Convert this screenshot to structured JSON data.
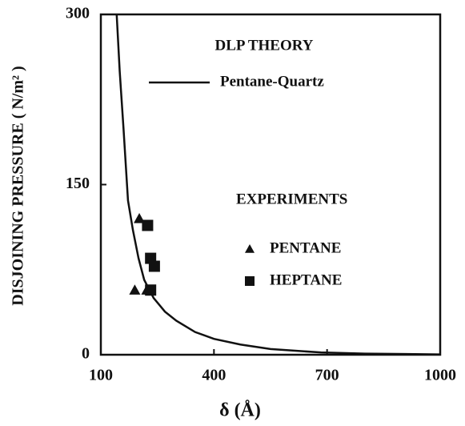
{
  "chart_data": {
    "type": "line",
    "x_label": "δ (Å)",
    "y_label": "DISJOINING PRESSURE ( N/m² )",
    "annotations": [
      "DLP THEORY",
      "EXPERIMENTS"
    ],
    "xlim": [
      100,
      1000
    ],
    "xticks": [
      100,
      400,
      700,
      1000
    ],
    "ylim": [
      0,
      300
    ],
    "yticks": [
      0,
      150,
      300
    ],
    "series": [
      {
        "name": "Pentane-Quartz",
        "marker": "none",
        "color": "#111111",
        "x": [
          142,
          150,
          160,
          172,
          185,
          200,
          215,
          240,
          270,
          300,
          350,
          400,
          470,
          550,
          684,
          800,
          1000
        ],
        "values": [
          300,
          250,
          200,
          136,
          110,
          85,
          66,
          50,
          38,
          30,
          20,
          14,
          9,
          5,
          2,
          1,
          0.3
        ]
      },
      {
        "name": "PENTANE",
        "marker": "triangle",
        "color": "#111111",
        "x": [
          202,
          190,
          222
        ],
        "values": [
          120,
          57,
          57
        ]
      },
      {
        "name": "HEPTANE",
        "marker": "square",
        "color": "#111111",
        "x": [
          224,
          232,
          242,
          232
        ],
        "values": [
          114,
          85,
          78,
          57
        ]
      }
    ]
  }
}
